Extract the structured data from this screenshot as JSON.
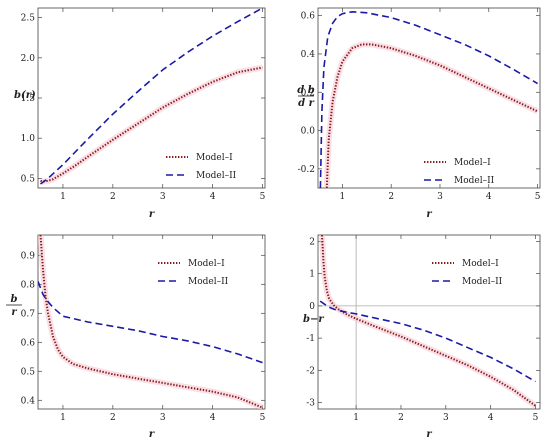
{
  "chart_data": [
    {
      "type": "line",
      "ylabel": "b(r)",
      "xlabel": "r",
      "xlim": [
        0.5,
        5.05
      ],
      "ylim": [
        0.38,
        2.62
      ],
      "xticks": [
        1,
        2,
        3,
        4,
        5
      ],
      "yticks": [
        0.5,
        1.0,
        1.5,
        2.0,
        2.5
      ],
      "ytick_labels": [
        "0.5",
        "1.0",
        "1.5",
        "2.0",
        "2.5"
      ],
      "legend": "center-right",
      "series": [
        {
          "name": "Model–I",
          "color": "#8b1a1a",
          "x": [
            0.55,
            0.6,
            0.7,
            0.8,
            1.0,
            1.25,
            1.5,
            2.0,
            2.5,
            3.0,
            3.5,
            4.0,
            4.5,
            5.0
          ],
          "y": [
            0.47,
            0.46,
            0.47,
            0.49,
            0.56,
            0.66,
            0.77,
            0.98,
            1.18,
            1.38,
            1.55,
            1.7,
            1.82,
            1.88
          ]
        },
        {
          "name": "Model–II",
          "color": "#1a1aa6",
          "x": [
            0.55,
            0.7,
            1.0,
            1.5,
            2.0,
            2.5,
            3.0,
            3.5,
            4.0,
            4.5,
            5.0
          ],
          "y": [
            0.43,
            0.5,
            0.67,
            0.99,
            1.3,
            1.58,
            1.85,
            2.07,
            2.27,
            2.45,
            2.62
          ]
        }
      ]
    },
    {
      "type": "line",
      "ylabel_num": "d b",
      "ylabel_den": "d r",
      "xlabel": "r",
      "xlim": [
        0.5,
        5.05
      ],
      "ylim": [
        -0.3,
        0.64
      ],
      "xticks": [
        1,
        2,
        3,
        4,
        5
      ],
      "yticks": [
        -0.2,
        0.0,
        0.2,
        0.4,
        0.6
      ],
      "ytick_labels": [
        "-0.2",
        "0.0",
        "0.2",
        "0.4",
        "0.6"
      ],
      "legend": "bottom-right",
      "series": [
        {
          "name": "Model–I",
          "color": "#8b1a1a",
          "x": [
            0.68,
            0.72,
            0.8,
            0.9,
            1.0,
            1.2,
            1.4,
            1.6,
            2.0,
            2.5,
            3.0,
            3.5,
            4.0,
            4.5,
            5.0
          ],
          "y": [
            -0.3,
            -0.05,
            0.15,
            0.28,
            0.36,
            0.43,
            0.45,
            0.45,
            0.43,
            0.39,
            0.34,
            0.28,
            0.22,
            0.16,
            0.1
          ]
        },
        {
          "name": "Model–II",
          "color": "#1a1aa6",
          "x": [
            0.55,
            0.58,
            0.62,
            0.7,
            0.8,
            0.9,
            1.0,
            1.2,
            1.5,
            2.0,
            2.5,
            3.0,
            3.5,
            4.0,
            4.5,
            5.0
          ],
          "y": [
            -0.3,
            0.1,
            0.33,
            0.49,
            0.56,
            0.595,
            0.61,
            0.62,
            0.615,
            0.59,
            0.55,
            0.5,
            0.45,
            0.39,
            0.32,
            0.245
          ]
        }
      ]
    },
    {
      "type": "line",
      "ylabel_num": "b",
      "ylabel_den": "r",
      "xlabel": "r",
      "xlim": [
        0.5,
        5.05
      ],
      "ylim": [
        0.37,
        0.97
      ],
      "xticks": [
        1,
        2,
        3,
        4,
        5
      ],
      "yticks": [
        0.4,
        0.5,
        0.6,
        0.7,
        0.8,
        0.9
      ],
      "ytick_labels": [
        "0.4",
        "0.5",
        "0.6",
        "0.7",
        "0.8",
        "0.9"
      ],
      "legend": "top-right",
      "series": [
        {
          "name": "Model–I",
          "color": "#8b1a1a",
          "x": [
            0.55,
            0.6,
            0.65,
            0.7,
            0.8,
            0.9,
            1.0,
            1.2,
            1.5,
            2.0,
            2.5,
            3.0,
            3.5,
            4.0,
            4.5,
            5.0
          ],
          "y": [
            0.97,
            0.85,
            0.76,
            0.7,
            0.62,
            0.575,
            0.55,
            0.525,
            0.51,
            0.49,
            0.475,
            0.46,
            0.445,
            0.43,
            0.41,
            0.375
          ]
        },
        {
          "name": "Model–II",
          "color": "#1a1aa6",
          "x": [
            0.5,
            0.6,
            0.7,
            0.8,
            1.0,
            1.5,
            2.0,
            2.5,
            3.0,
            3.5,
            4.0,
            4.5,
            5.0
          ],
          "y": [
            0.81,
            0.765,
            0.74,
            0.72,
            0.69,
            0.67,
            0.655,
            0.64,
            0.62,
            0.605,
            0.585,
            0.56,
            0.53
          ]
        }
      ]
    },
    {
      "type": "line",
      "ylabel": "b−r",
      "xlabel": "r",
      "xlim": [
        0.15,
        5.1
      ],
      "ylim": [
        -3.2,
        2.2
      ],
      "xticks": [
        1,
        2,
        3,
        4,
        5
      ],
      "yticks": [
        -3,
        -2,
        -1,
        0,
        1,
        2
      ],
      "ytick_labels": [
        "-3",
        "-2",
        "-1",
        "0",
        "1",
        "2"
      ],
      "xaxis_at": 0,
      "yaxis_at": 1,
      "legend": "top-right",
      "series": [
        {
          "name": "Model–I",
          "color": "#8b1a1a",
          "x": [
            0.24,
            0.27,
            0.3,
            0.35,
            0.4,
            0.5,
            0.6,
            0.8,
            1.0,
            1.5,
            2.0,
            2.5,
            3.0,
            3.5,
            4.0,
            4.5,
            5.0
          ],
          "y": [
            2.2,
            1.4,
            0.9,
            0.45,
            0.22,
            0.02,
            -0.1,
            -0.27,
            -0.4,
            -0.68,
            -0.95,
            -1.25,
            -1.55,
            -1.85,
            -2.2,
            -2.6,
            -3.1
          ]
        },
        {
          "name": "Model–II",
          "color": "#1a1aa6",
          "x": [
            0.2,
            0.3,
            0.4,
            0.5,
            0.6,
            0.8,
            1.0,
            1.5,
            2.0,
            2.5,
            3.0,
            3.5,
            4.0,
            4.5,
            5.0
          ],
          "y": [
            0.15,
            0.05,
            -0.04,
            -0.1,
            -0.14,
            -0.2,
            -0.25,
            -0.4,
            -0.55,
            -0.75,
            -1.0,
            -1.3,
            -1.6,
            -1.95,
            -2.35
          ]
        }
      ]
    }
  ]
}
